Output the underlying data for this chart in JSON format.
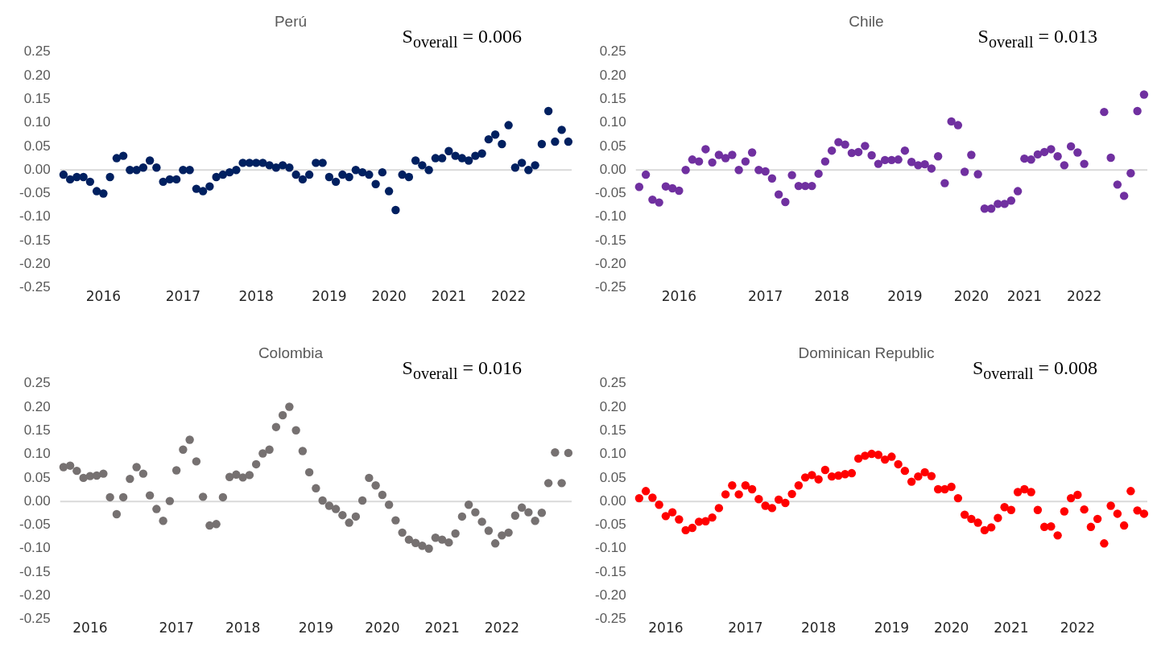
{
  "chart_data": [
    {
      "type": "scatter",
      "title": "Perú",
      "marker": "circle",
      "grid": false,
      "legend": false,
      "annotations": [
        "S$_{overall}$ = 0.006"
      ],
      "categories": [
        null,
        null,
        null,
        null,
        null,
        null,
        "2016",
        null,
        null,
        null,
        null,
        null,
        null,
        null,
        null,
        null,
        null,
        null,
        "2017",
        null,
        null,
        null,
        null,
        null,
        null,
        null,
        null,
        null,
        null,
        "2018",
        null,
        null,
        null,
        null,
        null,
        null,
        null,
        null,
        null,
        null,
        "2019",
        null,
        null,
        null,
        null,
        null,
        null,
        null,
        null,
        "2020",
        null,
        null,
        null,
        null,
        null,
        null,
        null,
        null,
        "2021",
        null,
        null,
        null,
        null,
        null,
        null,
        null,
        null,
        "2022",
        null,
        null,
        null,
        null,
        null,
        null,
        null,
        null,
        null
      ],
      "series": [
        {
          "color": "#002060",
          "values": [
            -0.01,
            -0.02,
            -0.015,
            -0.015,
            -0.025,
            -0.045,
            -0.05,
            -0.015,
            0.025,
            0.03,
            0,
            0,
            0.005,
            0.02,
            0.005,
            -0.025,
            -0.02,
            -0.02,
            0,
            0,
            -0.04,
            -0.045,
            -0.035,
            -0.015,
            -0.01,
            -0.005,
            0,
            0.015,
            0.015,
            0.015,
            0.015,
            0.01,
            0.005,
            0.01,
            0.005,
            -0.01,
            -0.02,
            -0.01,
            0.015,
            0.015,
            -0.015,
            -0.025,
            -0.01,
            -0.015,
            0,
            -0.005,
            -0.01,
            -0.03,
            -0.005,
            -0.045,
            -0.085,
            -0.01,
            -0.015,
            0.02,
            0.01,
            0,
            0.025,
            0.025,
            0.04,
            0.03,
            0.025,
            0.02,
            0.03,
            0.035,
            0.065,
            0.075,
            0.055,
            0.095,
            0.005,
            0.015,
            0,
            0.01,
            0.055,
            0.125,
            0.06,
            0.085,
            0.06
          ]
        }
      ],
      "ylim": [
        -0.25,
        0.25
      ],
      "yticks": [
        {
          "value": -0.25,
          "label": "-0.25"
        },
        {
          "value": -0.2,
          "label": "-0.20"
        },
        {
          "value": -0.15,
          "label": "-0.15"
        },
        {
          "value": -0.1,
          "label": "-0.10"
        },
        {
          "value": -0.05,
          "label": "-0.05"
        },
        {
          "value": 0,
          "label": "0.00"
        },
        {
          "value": 0.05,
          "label": "0.05"
        },
        {
          "value": 0.1,
          "label": "0.10"
        },
        {
          "value": 0.15,
          "label": "0.15"
        },
        {
          "value": 0.2,
          "label": "0.20"
        },
        {
          "value": 0.25,
          "label": "0.25"
        }
      ],
      "ref_lines": [
        {
          "axis": "y",
          "value": 0,
          "color": "#d9d9d9"
        }
      ]
    },
    {
      "type": "scatter",
      "title": "Chile",
      "marker": "circle",
      "grid": false,
      "legend": false,
      "annotations": [
        "S$_{overall}$ = 0.013"
      ],
      "categories": [
        null,
        null,
        null,
        null,
        null,
        null,
        "2016",
        null,
        null,
        null,
        null,
        null,
        null,
        null,
        null,
        null,
        null,
        null,
        null,
        "2017",
        null,
        null,
        null,
        null,
        null,
        null,
        null,
        null,
        null,
        "2018",
        null,
        null,
        null,
        null,
        null,
        null,
        null,
        null,
        null,
        null,
        "2019",
        null,
        null,
        null,
        null,
        null,
        null,
        null,
        null,
        null,
        "2020",
        null,
        null,
        null,
        null,
        null,
        null,
        null,
        "2021",
        null,
        null,
        null,
        null,
        null,
        null,
        null,
        null,
        "2022",
        null,
        null,
        null,
        null,
        null,
        null,
        null,
        null,
        null
      ],
      "series": [
        {
          "color": "#7030a0",
          "values": [
            -0.036,
            -0.01,
            -0.063,
            -0.069,
            -0.035,
            -0.039,
            -0.044,
            0,
            0.022,
            0.018,
            0.044,
            0.016,
            0.032,
            0.025,
            0.032,
            0,
            0.018,
            0.037,
            0,
            -0.003,
            -0.018,
            -0.052,
            -0.068,
            -0.011,
            -0.034,
            -0.034,
            -0.034,
            -0.008,
            0.018,
            0.041,
            0.059,
            0.054,
            0.036,
            0.038,
            0.051,
            0.031,
            0.013,
            0.021,
            0.021,
            0.022,
            0.041,
            0.017,
            0.01,
            0.012,
            0.003,
            0.029,
            -0.028,
            0.103,
            0.095,
            -0.004,
            0.032,
            -0.009,
            -0.082,
            -0.082,
            -0.072,
            -0.072,
            -0.065,
            -0.045,
            0.024,
            0.022,
            0.033,
            0.038,
            0.044,
            0.029,
            0.01,
            0.05,
            0.037,
            0.013,
            null,
            null,
            0.123,
            0.026,
            -0.031,
            -0.055,
            -0.007,
            0.125,
            0.16
          ]
        }
      ],
      "ylim": [
        -0.25,
        0.25
      ],
      "yticks": [
        {
          "value": -0.25,
          "label": "-0.25"
        },
        {
          "value": -0.2,
          "label": "-0.20"
        },
        {
          "value": -0.15,
          "label": "-0.15"
        },
        {
          "value": -0.1,
          "label": "-0.10"
        },
        {
          "value": -0.05,
          "label": "-0.05"
        },
        {
          "value": 0,
          "label": "0.00"
        },
        {
          "value": 0.05,
          "label": "0.05"
        },
        {
          "value": 0.1,
          "label": "0.10"
        },
        {
          "value": 0.15,
          "label": "0.15"
        },
        {
          "value": 0.2,
          "label": "0.20"
        },
        {
          "value": 0.25,
          "label": "0.25"
        }
      ],
      "ref_lines": [
        {
          "axis": "y",
          "value": 0,
          "color": "#d9d9d9"
        }
      ]
    },
    {
      "type": "scatter",
      "title": "Colombia",
      "marker": "circle",
      "grid": false,
      "legend": false,
      "annotations": [
        "S$_{overall}$ = 0.016"
      ],
      "categories": [
        null,
        null,
        null,
        null,
        "2016",
        null,
        null,
        null,
        null,
        null,
        null,
        null,
        null,
        null,
        null,
        null,
        null,
        "2017",
        null,
        null,
        null,
        null,
        null,
        null,
        null,
        null,
        null,
        "2018",
        null,
        null,
        null,
        null,
        null,
        null,
        null,
        null,
        null,
        null,
        "2019",
        null,
        null,
        null,
        null,
        null,
        null,
        null,
        null,
        null,
        "2020",
        null,
        null,
        null,
        null,
        null,
        null,
        null,
        null,
        "2021",
        null,
        null,
        null,
        null,
        null,
        null,
        null,
        null,
        "2022",
        null,
        null,
        null,
        null,
        null,
        null,
        null,
        null,
        null,
        null
      ],
      "series": [
        {
          "color": "#767171",
          "values": [
            0.073,
            0.076,
            0.065,
            0.05,
            0.054,
            0.055,
            0.059,
            0.009,
            -0.027,
            0.009,
            0.048,
            0.073,
            0.059,
            0.013,
            -0.016,
            -0.041,
            0.001,
            0.066,
            0.11,
            0.131,
            0.085,
            0.01,
            -0.051,
            -0.048,
            0.009,
            0.052,
            0.057,
            0.051,
            0.056,
            0.079,
            0.102,
            0.11,
            0.158,
            0.183,
            0.201,
            0.151,
            0.107,
            0.062,
            0.028,
            0.002,
            -0.009,
            -0.016,
            -0.029,
            -0.045,
            -0.032,
            0.002,
            0.05,
            0.034,
            0.014,
            -0.007,
            -0.04,
            -0.066,
            -0.081,
            -0.088,
            -0.094,
            -0.1,
            -0.077,
            -0.081,
            -0.087,
            -0.068,
            -0.032,
            -0.007,
            -0.023,
            -0.043,
            -0.062,
            -0.089,
            -0.072,
            -0.066,
            -0.03,
            -0.013,
            -0.023,
            -0.041,
            -0.024,
            0.039,
            0.104,
            0.039,
            0.103
          ]
        }
      ],
      "ylim": [
        -0.25,
        0.25
      ],
      "yticks": [
        {
          "value": -0.25,
          "label": "-0.25"
        },
        {
          "value": -0.2,
          "label": "-0.20"
        },
        {
          "value": -0.15,
          "label": "-0.15"
        },
        {
          "value": -0.1,
          "label": "-0.10"
        },
        {
          "value": -0.05,
          "label": "-0.05"
        },
        {
          "value": 0,
          "label": "0.00"
        },
        {
          "value": 0.05,
          "label": "0.05"
        },
        {
          "value": 0.1,
          "label": "0.10"
        },
        {
          "value": 0.15,
          "label": "0.15"
        },
        {
          "value": 0.2,
          "label": "0.20"
        },
        {
          "value": 0.25,
          "label": "0.25"
        }
      ],
      "ref_lines": [
        {
          "axis": "y",
          "value": 0,
          "color": "#d9d9d9"
        }
      ]
    },
    {
      "type": "scatter",
      "title": "Dominican Republic",
      "marker": "circle",
      "grid": false,
      "legend": false,
      "annotations": [
        "S$_{overrall}$ = 0.008"
      ],
      "categories": [
        null,
        null,
        null,
        null,
        "2016",
        null,
        null,
        null,
        null,
        null,
        null,
        null,
        null,
        null,
        null,
        null,
        "2017",
        null,
        null,
        null,
        null,
        null,
        null,
        null,
        null,
        null,
        null,
        "2018",
        null,
        null,
        null,
        null,
        null,
        null,
        null,
        null,
        null,
        null,
        "2019",
        null,
        null,
        null,
        null,
        null,
        null,
        null,
        null,
        "2020",
        null,
        null,
        null,
        null,
        null,
        null,
        null,
        null,
        "2021",
        null,
        null,
        null,
        null,
        null,
        null,
        null,
        null,
        null,
        "2022",
        null,
        null,
        null,
        null,
        null,
        null,
        null,
        null,
        null,
        null
      ],
      "series": [
        {
          "color": "#ff0000",
          "values": [
            0.007,
            0.022,
            0.008,
            -0.007,
            -0.031,
            -0.023,
            -0.038,
            -0.061,
            -0.056,
            -0.043,
            -0.042,
            -0.034,
            -0.014,
            0.015,
            0.034,
            0.015,
            0.034,
            0.026,
            0.005,
            -0.009,
            -0.014,
            0.004,
            -0.003,
            0.016,
            0.034,
            0.051,
            0.056,
            0.047,
            0.067,
            0.053,
            0.055,
            0.058,
            0.06,
            0.091,
            0.097,
            0.101,
            0.099,
            0.089,
            0.095,
            0.079,
            0.065,
            0.042,
            0.053,
            0.062,
            0.054,
            0.026,
            0.026,
            0.031,
            0.007,
            -0.028,
            -0.037,
            -0.045,
            -0.061,
            -0.055,
            -0.035,
            -0.012,
            -0.018,
            0.02,
            0.026,
            0.02,
            -0.018,
            -0.054,
            -0.053,
            -0.072,
            -0.021,
            0.007,
            0.014,
            -0.017,
            -0.054,
            -0.037,
            -0.089,
            -0.009,
            -0.026,
            -0.051,
            0.022,
            -0.019,
            -0.026
          ]
        }
      ],
      "ylim": [
        -0.25,
        0.25
      ],
      "yticks": [
        {
          "value": -0.25,
          "label": "-0.25"
        },
        {
          "value": -0.2,
          "label": "-0.20"
        },
        {
          "value": -0.15,
          "label": "-0.15"
        },
        {
          "value": -0.1,
          "label": "-0.10"
        },
        {
          "value": -0.05,
          "label": "-0.05"
        },
        {
          "value": 0,
          "label": "0.00"
        },
        {
          "value": 0.05,
          "label": "0.05"
        },
        {
          "value": 0.1,
          "label": "0.10"
        },
        {
          "value": 0.15,
          "label": "0.15"
        },
        {
          "value": 0.2,
          "label": "0.20"
        },
        {
          "value": 0.25,
          "label": "0.25"
        }
      ],
      "ref_lines": [
        {
          "axis": "y",
          "value": 0,
          "color": "#d9d9d9"
        }
      ]
    }
  ]
}
